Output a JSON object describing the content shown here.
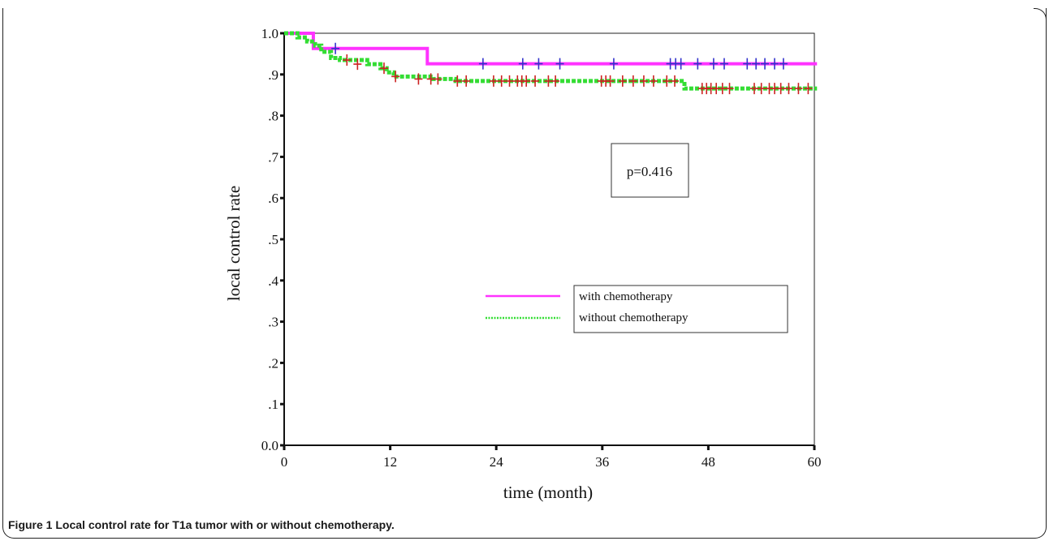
{
  "caption": {
    "label": "Figure 1",
    "text": "Local control rate for T1a tumor with or without chemotherapy."
  },
  "chart_data": {
    "type": "line",
    "subtype": "kaplan-meier",
    "xlabel": "time (month)",
    "ylabel": "local control rate",
    "xlim": [
      0,
      60
    ],
    "ylim": [
      0,
      1
    ],
    "xticks": [
      0,
      12,
      24,
      36,
      48,
      60
    ],
    "xtick_labels": [
      "0",
      "12",
      "24",
      "36",
      "48",
      "60"
    ],
    "yticks": [
      0,
      0.1,
      0.2,
      0.3,
      0.4,
      0.5,
      0.6,
      0.7,
      0.8,
      0.9,
      1.0
    ],
    "ytick_labels": [
      "0.0",
      ".1",
      ".2",
      ".3",
      ".4",
      ".5",
      ".6",
      ".7",
      ".8",
      ".9",
      "1.0"
    ],
    "grid": false,
    "annotation": "p=0.416",
    "legend_position": "lower-right",
    "series": [
      {
        "name": "with chemotherapy",
        "color": "#ff33ff",
        "censor_color": "#3333cc",
        "line_style": "solid",
        "steps": [
          [
            0,
            1.0
          ],
          [
            3.3,
            0.963
          ],
          [
            16.2,
            0.926
          ],
          [
            60.3,
            0.926
          ]
        ],
        "censored": [
          [
            5.8,
            0.963
          ],
          [
            22.5,
            0.926
          ],
          [
            27,
            0.926
          ],
          [
            28.8,
            0.926
          ],
          [
            31.2,
            0.926
          ],
          [
            37.3,
            0.926
          ],
          [
            43.7,
            0.926
          ],
          [
            44.3,
            0.926
          ],
          [
            44.9,
            0.926
          ],
          [
            46.8,
            0.926
          ],
          [
            48.6,
            0.926
          ],
          [
            49.8,
            0.926
          ],
          [
            52.4,
            0.926
          ],
          [
            53.4,
            0.926
          ],
          [
            54.4,
            0.926
          ],
          [
            55.5,
            0.926
          ],
          [
            56.5,
            0.926
          ]
        ]
      },
      {
        "name": "without chemotherapy",
        "color": "#33dd33",
        "censor_color": "#cc2222",
        "line_style": "dotted",
        "steps": [
          [
            0,
            1.0
          ],
          [
            1.5,
            0.99
          ],
          [
            2.6,
            0.98
          ],
          [
            3.5,
            0.97
          ],
          [
            4.2,
            0.955
          ],
          [
            5.3,
            0.94
          ],
          [
            6.3,
            0.935
          ],
          [
            9.4,
            0.925
          ],
          [
            10.9,
            0.915
          ],
          [
            11.6,
            0.905
          ],
          [
            12.4,
            0.895
          ],
          [
            16.9,
            0.889
          ],
          [
            19.4,
            0.884
          ],
          [
            45.3,
            0.866
          ],
          [
            60.3,
            0.866
          ]
        ],
        "censored": [
          [
            7.1,
            0.935
          ],
          [
            8.3,
            0.925
          ],
          [
            11.3,
            0.915
          ],
          [
            12.6,
            0.895
          ],
          [
            15.2,
            0.889
          ],
          [
            16.6,
            0.889
          ],
          [
            17.4,
            0.889
          ],
          [
            19.6,
            0.884
          ],
          [
            20.6,
            0.884
          ],
          [
            23.7,
            0.884
          ],
          [
            24.6,
            0.884
          ],
          [
            25.5,
            0.884
          ],
          [
            26.4,
            0.884
          ],
          [
            26.9,
            0.884
          ],
          [
            27.4,
            0.884
          ],
          [
            28.4,
            0.884
          ],
          [
            29.9,
            0.884
          ],
          [
            30.7,
            0.884
          ],
          [
            35.9,
            0.884
          ],
          [
            36.4,
            0.884
          ],
          [
            36.9,
            0.884
          ],
          [
            38.3,
            0.884
          ],
          [
            39.5,
            0.884
          ],
          [
            40.7,
            0.884
          ],
          [
            41.8,
            0.884
          ],
          [
            43.3,
            0.884
          ],
          [
            44.2,
            0.884
          ],
          [
            47.3,
            0.866
          ],
          [
            47.8,
            0.866
          ],
          [
            48.3,
            0.866
          ],
          [
            48.9,
            0.866
          ],
          [
            49.6,
            0.866
          ],
          [
            50.4,
            0.866
          ],
          [
            53.2,
            0.866
          ],
          [
            54.0,
            0.866
          ],
          [
            54.9,
            0.866
          ],
          [
            55.5,
            0.866
          ],
          [
            56.2,
            0.866
          ],
          [
            57.1,
            0.866
          ],
          [
            58.2,
            0.866
          ],
          [
            59.3,
            0.866
          ]
        ]
      }
    ]
  }
}
